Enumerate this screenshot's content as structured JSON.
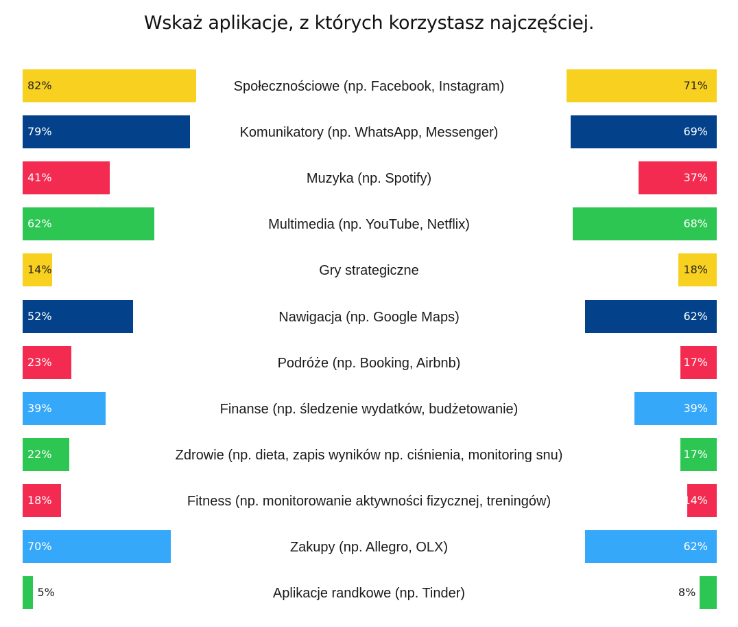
{
  "title": "Wskaż aplikacje, z których korzystasz najczęściej.",
  "colors": {
    "yellow": "#F8D020",
    "navy": "#03428A",
    "red": "#F42B51",
    "green": "#2DC653",
    "lightblue": "#36A8FA"
  },
  "rows": [
    {
      "label": "Społecznościowe (np. Facebook, Instagram)",
      "left": "82%",
      "right": "71%",
      "color": "yellow"
    },
    {
      "label": "Komunikatory (np. WhatsApp, Messenger)",
      "left": "79%",
      "right": "69%",
      "color": "navy"
    },
    {
      "label": "Muzyka (np. Spotify)",
      "left": "41%",
      "right": "37%",
      "color": "red"
    },
    {
      "label": "Multimedia (np. YouTube, Netflix)",
      "left": "62%",
      "right": "68%",
      "color": "green"
    },
    {
      "label": "Gry strategiczne",
      "left": "14%",
      "right": "18%",
      "color": "yellow"
    },
    {
      "label": "Nawigacja (np. Google Maps)",
      "left": "52%",
      "right": "62%",
      "color": "navy"
    },
    {
      "label": "Podróże (np. Booking, Airbnb)",
      "left": "23%",
      "right": "17%",
      "color": "red"
    },
    {
      "label": "Finanse (np. śledzenie wydatków, budżetowanie)",
      "left": "39%",
      "right": "39%",
      "color": "lightblue"
    },
    {
      "label": "Zdrowie (np. dieta, zapis wyników np. ciśnienia, monitoring snu)",
      "left": "22%",
      "right": "17%",
      "color": "green"
    },
    {
      "label": "Fitness (np. monitorowanie aktywności fizycznej, treningów)",
      "left": "18%",
      "right": "14%",
      "color": "red"
    },
    {
      "label": "Zakupy (np. Allegro, OLX)",
      "left": "70%",
      "right": "62%",
      "color": "lightblue"
    },
    {
      "label": "Aplikacje randkowe (np. Tinder)",
      "left": "5%",
      "right": "8%",
      "color": "green"
    }
  ],
  "chart_data": {
    "type": "bar",
    "orientation": "horizontal-diverging",
    "title": "Wskaż aplikacje, z których korzystasz najczęściej.",
    "categories": [
      "Społecznościowe (np. Facebook, Instagram)",
      "Komunikatory (np. WhatsApp, Messenger)",
      "Muzyka (np. Spotify)",
      "Multimedia (np. YouTube, Netflix)",
      "Gry strategiczne",
      "Nawigacja (np. Google Maps)",
      "Podróże (np. Booking, Airbnb)",
      "Finanse (np. śledzenie wydatków, budżetowanie)",
      "Zdrowie (np. dieta, zapis wyników np. ciśnienia, monitoring snu)",
      "Fitness (np. monitorowanie aktywności fizycznej, treningów)",
      "Zakupy (np. Allegro, OLX)",
      "Aplikacje randkowe (np. Tinder)"
    ],
    "series": [
      {
        "name": "left",
        "values": [
          82,
          79,
          41,
          62,
          14,
          52,
          23,
          39,
          22,
          18,
          70,
          5
        ]
      },
      {
        "name": "right",
        "values": [
          71,
          69,
          37,
          68,
          18,
          62,
          17,
          39,
          17,
          14,
          62,
          8
        ]
      }
    ],
    "xlabel": "",
    "ylabel": "",
    "unit": "%",
    "grid": false,
    "legend": null
  }
}
